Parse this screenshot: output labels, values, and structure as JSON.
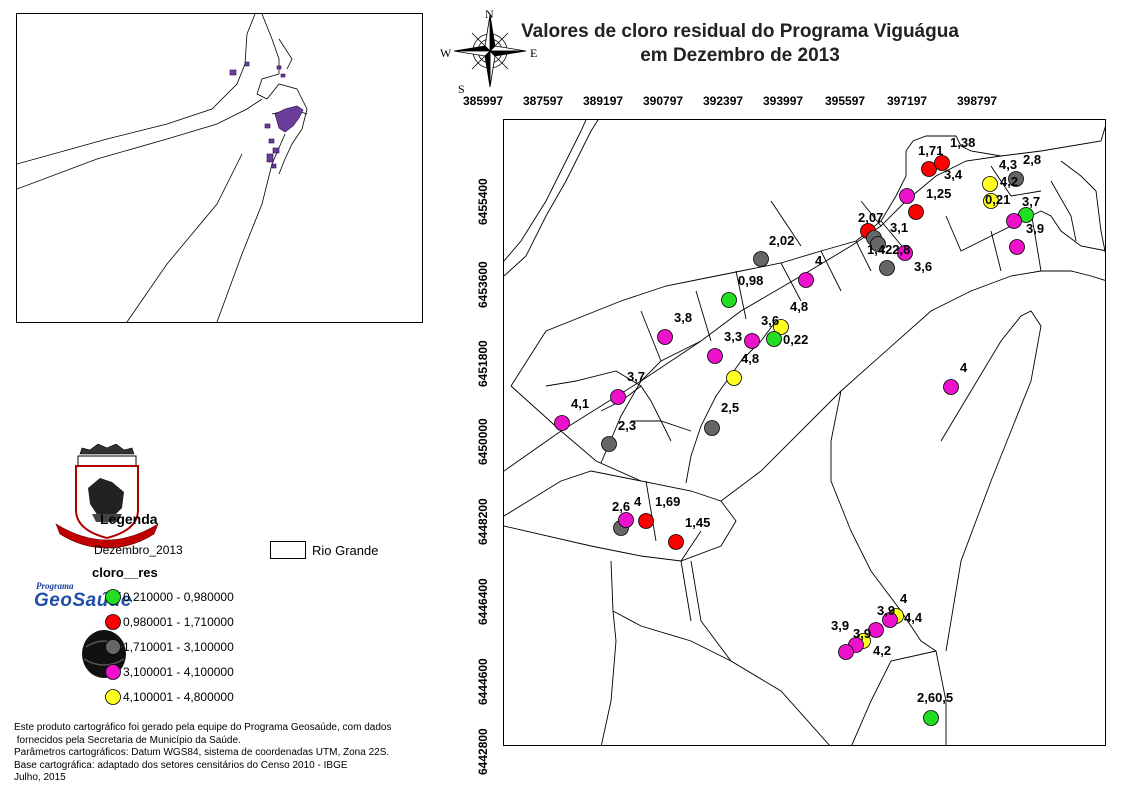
{
  "title": {
    "line1": "Valores de cloro residual do Programa Viguágua",
    "line2": "em Dezembro de 2013"
  },
  "compass": {
    "n": "N",
    "s": "S",
    "e": "E",
    "w": "W"
  },
  "x_ticks": [
    "385997",
    "387597",
    "389197",
    "390797",
    "392397",
    "393997",
    "395597",
    "397197",
    "398797"
  ],
  "y_ticks": [
    "6455400",
    "6453600",
    "6451800",
    "6450000",
    "6448200",
    "6446400",
    "6444600",
    "6442800"
  ],
  "point_labels": [
    "1,71",
    "1,38",
    "3,4",
    "4,3",
    "2,8",
    "1,25",
    "4,2",
    "0,21",
    "3,7",
    "2,07",
    "3,1",
    "3,9",
    "1,422,8",
    "3,6",
    "2,02",
    "4",
    "0,98",
    "4,8",
    "3,8",
    "3,6",
    "3,3",
    "0,22",
    "4,8",
    "3,7",
    "4,1",
    "2,5",
    "2,3",
    "2,6",
    "4",
    "1,69",
    "1,45",
    "4",
    "3,9",
    "4,4",
    "3,9",
    "3,9",
    "4,2",
    "4",
    "2,60,5"
  ],
  "legend": {
    "title": "Legenda",
    "layer": "Dezembro_2013",
    "field": "cloro__res",
    "classes": [
      {
        "label": "0,210000 - 0,980000",
        "color": "#22dd22"
      },
      {
        "label": "0,980001 - 1,710000",
        "color": "#ff0000"
      },
      {
        "label": "1,710001 - 3,100000",
        "color": "#666666"
      },
      {
        "label": "3,100001 - 4,100000",
        "color": "#ee11cc"
      },
      {
        "label": "4,100001 - 4,800000",
        "color": "#ffff22"
      }
    ],
    "area_label": "Rio Grande"
  },
  "logos": {
    "program_small": "Programa",
    "program_big": "GeoSaúde"
  },
  "credits": [
    "Este produto cartográfico foi gerado pela equipe do Programa Geosaúde, com dados",
    " fornecidos pela Secretaria de Município da Saúde.",
    "Parâmetros cartográficos: Datum WGS84, sistema de coordenadas UTM, Zona 22S.",
    "Base cartográfica: adaptado dos setores censitários do Censo 2010 - IBGE",
    "Julho, 2015"
  ]
}
